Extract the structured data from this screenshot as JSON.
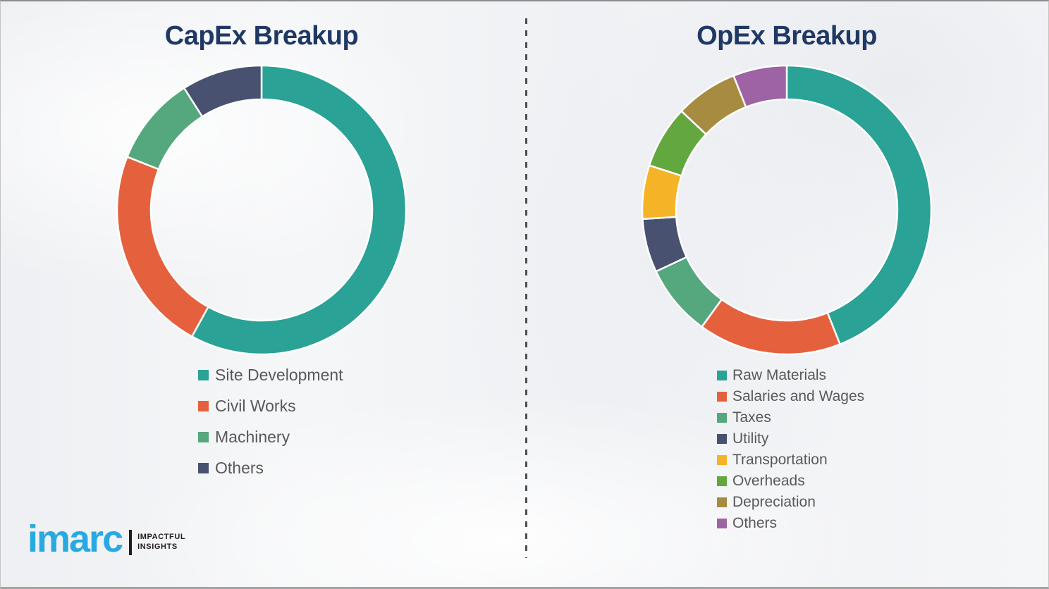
{
  "page": {
    "background_color": "#f1f2f4",
    "divider_color": "#4d4d4d",
    "title_color": "#1f3864",
    "legend_text_color": "#595959"
  },
  "chart_data": [
    {
      "type": "pie",
      "variant": "donut",
      "title": "CapEx Breakup",
      "categories": [
        "Site Development",
        "Civil Works",
        "Machinery",
        "Others"
      ],
      "values": [
        58,
        23,
        10,
        9
      ],
      "value_unit": "percent-of-ring (estimated from arc angles; no numeric labels shown)",
      "colors": [
        "#2aa295",
        "#e5613d",
        "#55a77d",
        "#485270"
      ],
      "start_angle_deg": 0,
      "direction": "clockwise",
      "legend_position": "below-left"
    },
    {
      "type": "pie",
      "variant": "donut",
      "title": "OpEx Breakup",
      "categories": [
        "Raw Materials",
        "Salaries and Wages",
        "Taxes",
        "Utility",
        "Transportation",
        "Overheads",
        "Depreciation",
        "Others"
      ],
      "values": [
        44,
        16,
        8,
        6,
        6,
        7,
        7,
        6
      ],
      "value_unit": "percent-of-ring (estimated from arc angles; no numeric labels shown)",
      "colors": [
        "#2aa295",
        "#e5613d",
        "#55a77d",
        "#485270",
        "#f5b427",
        "#63a73f",
        "#a78b41",
        "#9d63a4"
      ],
      "start_angle_deg": 0,
      "direction": "clockwise",
      "legend_position": "below-left"
    }
  ],
  "logo": {
    "brand": "imarc",
    "tagline_line1": "IMPACTFUL",
    "tagline_line2": "INSIGHTS",
    "brand_color": "#29a9e2"
  }
}
